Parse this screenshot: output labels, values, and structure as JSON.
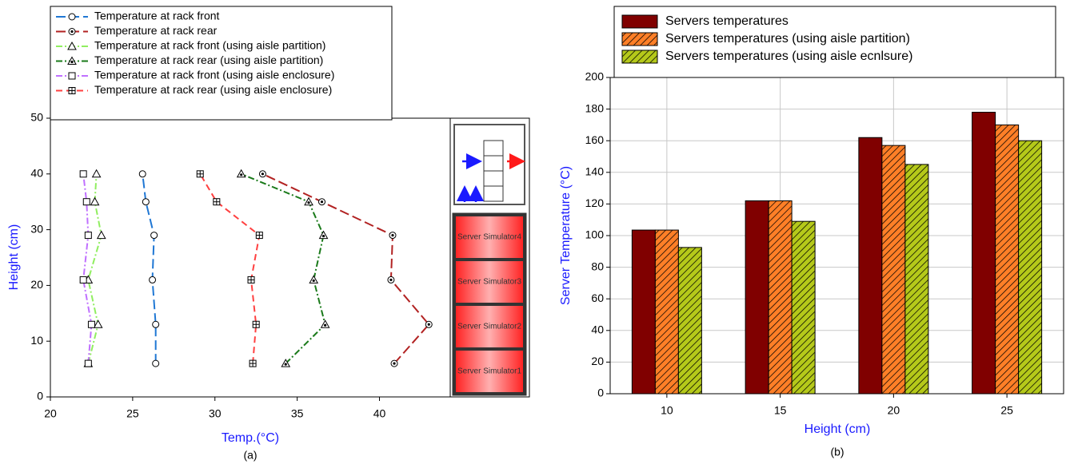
{
  "chart_data": [
    {
      "type": "line",
      "x_label": "Temp.(°C)",
      "y_label": "Height (cm)",
      "caption": "(a)",
      "y": [
        6,
        13,
        21,
        29,
        35,
        40
      ],
      "series": [
        {
          "name": "Temperature at rack front",
          "color": "#1f77d4",
          "marker": "circle",
          "dash": "12 5",
          "x": [
            26.4,
            26.4,
            26.2,
            26.3,
            25.8,
            25.6
          ]
        },
        {
          "name": "Temperature at rack rear",
          "color": "#b22222",
          "marker": "circle-dot",
          "dash": "12 5",
          "x": [
            40.9,
            43.0,
            40.7,
            40.8,
            36.5,
            32.9
          ]
        },
        {
          "name": "Temperature at rack front (using aisle partition)",
          "color": "#90ee60",
          "marker": "triangle",
          "dash": "8 3 2 3",
          "x": [
            22.3,
            22.9,
            22.3,
            23.1,
            22.7,
            22.8
          ]
        },
        {
          "name": "Temperature at rack rear (using aisle partition)",
          "color": "#1a7a1a",
          "marker": "triangle-dot",
          "dash": "8 3 2 3",
          "x": [
            34.3,
            36.7,
            36.0,
            36.6,
            35.7,
            31.6
          ]
        },
        {
          "name": "Temperature at rack front (using aisle enclosure)",
          "color": "#c070ff",
          "marker": "square",
          "dash": "8 3 2 3",
          "x": [
            22.3,
            22.5,
            22.0,
            22.3,
            22.2,
            22.0
          ]
        },
        {
          "name": "Temperature at rack rear (using aisle enclosure)",
          "color": "#ff4040",
          "marker": "square-plus",
          "dash": "8 5",
          "x": [
            32.3,
            32.5,
            32.2,
            32.7,
            30.1,
            29.1
          ]
        }
      ],
      "xlim": [
        20,
        44.3
      ],
      "xticks": [
        20,
        25,
        30,
        35,
        40
      ],
      "ylim": [
        0,
        50
      ],
      "yticks": [
        0,
        10,
        20,
        30,
        40,
        50
      ],
      "legend": "top",
      "rack_labels": [
        "Server Simulator4",
        "Server Simulator3",
        "Server Simulator2",
        "Server Simulator1"
      ]
    },
    {
      "type": "bar",
      "x_label": "Height (cm)",
      "y_label": "Server Temperature (°C)",
      "caption": "(b)",
      "categories": [
        "10",
        "15",
        "20",
        "25"
      ],
      "series": [
        {
          "name": "Servers temperatures",
          "color": "#800000",
          "hatch": false,
          "values": [
            103.5,
            122,
            162,
            178
          ]
        },
        {
          "name": "Servers temperatures (using aisle partition)",
          "color": "#ff7f27",
          "hatch": true,
          "values": [
            103.5,
            122,
            157,
            170
          ]
        },
        {
          "name": "Servers temperatures (using aisle ecnlsure)",
          "color": "#b5c91a",
          "hatch": true,
          "values": [
            92.5,
            109,
            145,
            160
          ]
        }
      ],
      "ylim": [
        0,
        200
      ],
      "yticks": [
        0,
        20,
        40,
        60,
        80,
        100,
        120,
        140,
        160,
        180,
        200
      ],
      "grid": true,
      "legend": "top"
    }
  ]
}
